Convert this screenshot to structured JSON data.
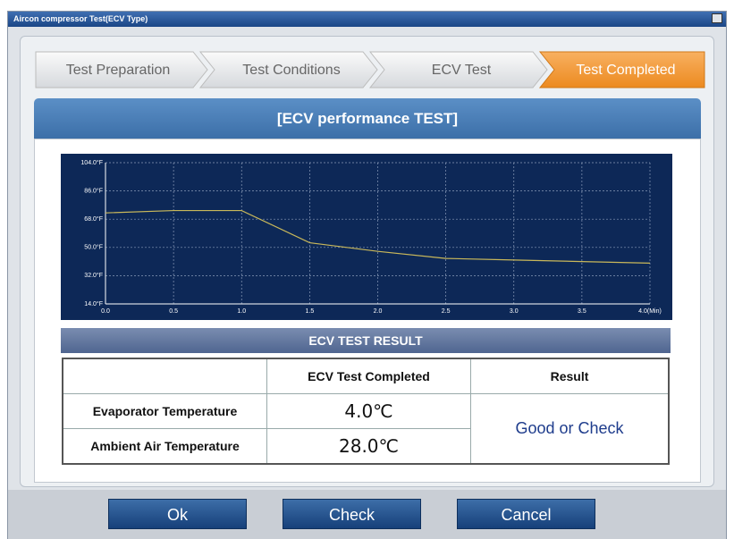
{
  "window": {
    "title": "Aircon compressor Test(ECV Type)"
  },
  "steps": [
    "Test Preparation",
    "Test Conditions",
    "ECV Test",
    "Test Completed"
  ],
  "header": {
    "title": "[ECV performance TEST]"
  },
  "chart_data": {
    "type": "line",
    "x": [
      0,
      0.5,
      1,
      1.5,
      2,
      2.5,
      3,
      3.5,
      4
    ],
    "series": [
      {
        "color": "#c9b85a",
        "values": [
          72,
          73.5,
          73.5,
          53,
          47.5,
          43,
          42,
          41,
          40
        ]
      }
    ],
    "xlim": [
      0,
      4
    ],
    "ylim": [
      14,
      104
    ],
    "xticks": [
      {
        "value": 0,
        "label": "0.0"
      },
      {
        "value": 0.5,
        "label": "0.5"
      },
      {
        "value": 1,
        "label": "1.0"
      },
      {
        "value": 1.5,
        "label": "1.5"
      },
      {
        "value": 2,
        "label": "2.0"
      },
      {
        "value": 2.5,
        "label": "2.5"
      },
      {
        "value": 3,
        "label": "3.0"
      },
      {
        "value": 3.5,
        "label": "3.5"
      },
      {
        "value": 4,
        "label": "4.0(Min)"
      }
    ],
    "yticks": [
      {
        "value": 14,
        "label": "14.0°F"
      },
      {
        "value": 32,
        "label": "32.0°F"
      },
      {
        "value": 50,
        "label": "50.0°F"
      },
      {
        "value": 68,
        "label": "68.0°F"
      },
      {
        "value": 86,
        "label": "86.0°F"
      },
      {
        "value": 104,
        "label": "104.0°F"
      }
    ],
    "grid": true
  },
  "result": {
    "title": "ECV TEST RESULT",
    "columns": [
      "ECV Test Completed",
      "Result"
    ],
    "rows": [
      [
        "Evaporator Temperature",
        "4.0℃"
      ],
      [
        "Ambient Air Temperature",
        "28.0℃"
      ]
    ],
    "verdict": "Good or Check"
  },
  "buttons": [
    "Ok",
    "Check",
    "Cancel"
  ]
}
